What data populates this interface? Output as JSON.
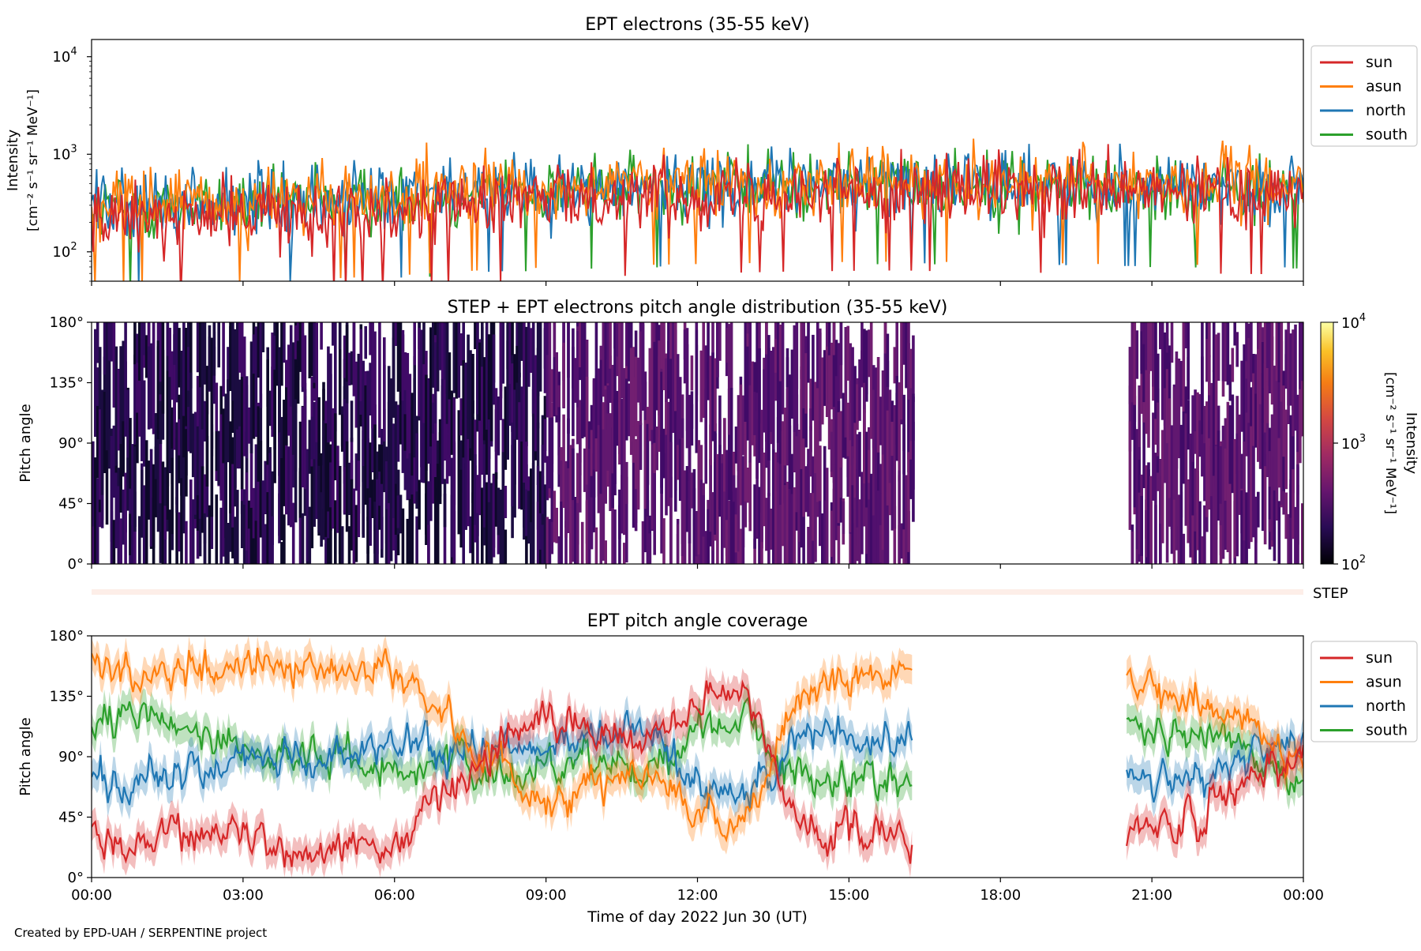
{
  "footer": {
    "credit": "Created by EPD-UAH / SERPENTINE project"
  },
  "colors": {
    "sun": "#d62728",
    "asun": "#ff7f0e",
    "north": "#1f77b4",
    "south": "#2ca02c",
    "step_bar": "#fdeee8"
  },
  "chart_data": [
    {
      "id": "intensity",
      "type": "line",
      "title": "EPT electrons (35-55 keV)",
      "ylabel": [
        "Intensity",
        "[cm⁻² s⁻¹ sr⁻¹ MeV⁻¹]"
      ],
      "yscale": "log",
      "ylim": [
        50,
        15000
      ],
      "yticks": [
        {
          "value": 100,
          "base": "10",
          "exp": "2"
        },
        {
          "value": 1000,
          "base": "10",
          "exp": "3"
        },
        {
          "value": 10000,
          "base": "10",
          "exp": "4"
        }
      ],
      "xlim": [
        "00:00",
        "24:00"
      ],
      "legend_position": "outside-top-right",
      "series": [
        {
          "name": "sun",
          "color": "#d62728",
          "x": [
            0,
            2,
            4,
            6,
            8,
            10,
            12,
            14,
            16,
            18,
            20,
            22,
            24
          ],
          "y": [
            220,
            230,
            250,
            280,
            330,
            370,
            400,
            420,
            430,
            410,
            400,
            400,
            390
          ]
        },
        {
          "name": "asun",
          "color": "#ff7f0e",
          "x": [
            0,
            2,
            4,
            6,
            8,
            10,
            12,
            14,
            16,
            18,
            20,
            22,
            24
          ],
          "y": [
            300,
            320,
            340,
            380,
            440,
            480,
            500,
            520,
            530,
            520,
            500,
            490,
            480
          ]
        },
        {
          "name": "north",
          "color": "#1f77b4",
          "x": [
            0,
            2,
            4,
            6,
            8,
            10,
            12,
            14,
            16,
            18,
            20,
            22,
            24
          ],
          "y": [
            290,
            310,
            330,
            360,
            420,
            460,
            480,
            500,
            510,
            500,
            480,
            470,
            460
          ]
        },
        {
          "name": "south",
          "color": "#2ca02c",
          "x": [
            0,
            2,
            4,
            6,
            8,
            10,
            12,
            14,
            16,
            18,
            20,
            22,
            24
          ],
          "y": [
            280,
            300,
            320,
            350,
            410,
            450,
            470,
            490,
            500,
            490,
            470,
            460,
            450
          ]
        }
      ]
    },
    {
      "id": "pad",
      "type": "heatmap",
      "title": "STEP + EPT electrons pitch angle distribution (35-55 keV)",
      "ylabel": "Pitch angle",
      "ylim": [
        0,
        180
      ],
      "yticks": [
        "0°",
        "45°",
        "90°",
        "135°",
        "180°"
      ],
      "xlim": [
        "00:00",
        "24:00"
      ],
      "data_gaps": [
        [
          "16:15",
          "20:30"
        ]
      ],
      "colorbar": {
        "label": [
          "Intensity",
          "[cm⁻² s⁻¹ sr⁻¹ MeV⁻¹]"
        ],
        "scale": "log",
        "range": [
          100,
          10000
        ],
        "ticks": [
          {
            "base": "10",
            "exp": "2"
          },
          {
            "base": "10",
            "exp": "3"
          },
          {
            "base": "10",
            "exp": "4"
          }
        ],
        "colormap": "inferno"
      },
      "typical_intensity": 300
    },
    {
      "id": "step",
      "type": "bar",
      "label": "STEP"
    },
    {
      "id": "coverage",
      "type": "line",
      "title": "EPT pitch angle coverage",
      "ylabel": "Pitch angle",
      "xlabel": "Time of day 2022 Jun 30 (UT)",
      "ylim": [
        0,
        180
      ],
      "yticks": [
        "0°",
        "45°",
        "90°",
        "135°",
        "180°"
      ],
      "xticks": [
        "00:00",
        "03:00",
        "06:00",
        "09:00",
        "12:00",
        "15:00",
        "18:00",
        "21:00",
        "00:00"
      ],
      "xlim": [
        "00:00",
        "24:00"
      ],
      "data_gaps": [
        [
          "16:15",
          "20:30"
        ]
      ],
      "legend_position": "outside-top-right",
      "series": [
        {
          "name": "sun",
          "color": "#d62728",
          "x": [
            "00:00",
            "01:00",
            "02:00",
            "03:00",
            "04:00",
            "05:00",
            "06:00",
            "07:00",
            "08:00",
            "09:00",
            "10:00",
            "11:00",
            "12:00",
            "13:00",
            "14:00",
            "15:00",
            "16:00",
            "16:15",
            "20:30",
            "21:00",
            "22:00",
            "23:00",
            "24:00"
          ],
          "y": [
            25,
            30,
            35,
            30,
            25,
            20,
            25,
            60,
            100,
            120,
            110,
            100,
            130,
            140,
            40,
            35,
            30,
            20,
            30,
            40,
            45,
            70,
            90
          ]
        },
        {
          "name": "asun",
          "color": "#ff7f0e",
          "x": [
            "00:00",
            "01:00",
            "02:00",
            "03:00",
            "04:00",
            "05:00",
            "06:00",
            "07:00",
            "08:00",
            "09:00",
            "10:00",
            "11:00",
            "12:00",
            "13:00",
            "14:00",
            "15:00",
            "16:00",
            "16:15",
            "20:30",
            "21:00",
            "22:00",
            "23:00",
            "24:00"
          ],
          "y": [
            160,
            150,
            155,
            160,
            150,
            160,
            155,
            120,
            80,
            60,
            70,
            80,
            50,
            40,
            140,
            150,
            150,
            155,
            150,
            140,
            135,
            110,
            90
          ]
        },
        {
          "name": "north",
          "color": "#1f77b4",
          "x": [
            "00:00",
            "01:00",
            "02:00",
            "03:00",
            "04:00",
            "05:00",
            "06:00",
            "07:00",
            "08:00",
            "09:00",
            "10:00",
            "11:00",
            "12:00",
            "13:00",
            "14:00",
            "15:00",
            "16:00",
            "16:15",
            "20:30",
            "21:00",
            "22:00",
            "23:00",
            "24:00"
          ],
          "y": [
            75,
            70,
            80,
            90,
            85,
            90,
            100,
            90,
            100,
            95,
            100,
            110,
            70,
            60,
            110,
            105,
            100,
            100,
            75,
            80,
            75,
            90,
            100
          ]
        },
        {
          "name": "south",
          "color": "#2ca02c",
          "x": [
            "00:00",
            "01:00",
            "02:00",
            "03:00",
            "04:00",
            "05:00",
            "06:00",
            "07:00",
            "08:00",
            "09:00",
            "10:00",
            "11:00",
            "12:00",
            "13:00",
            "14:00",
            "15:00",
            "16:00",
            "16:15",
            "20:30",
            "21:00",
            "22:00",
            "23:00",
            "24:00"
          ],
          "y": [
            110,
            120,
            110,
            95,
            90,
            90,
            80,
            90,
            70,
            85,
            90,
            80,
            110,
            120,
            70,
            75,
            75,
            80,
            110,
            105,
            110,
            90,
            70
          ]
        }
      ]
    }
  ]
}
